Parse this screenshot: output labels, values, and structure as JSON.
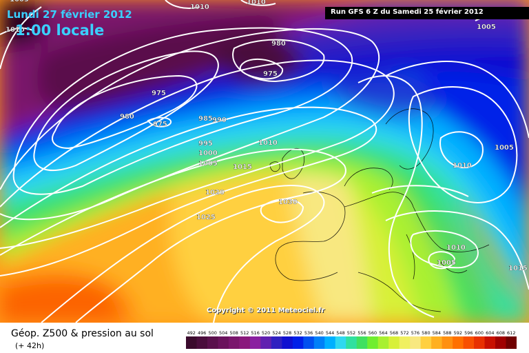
{
  "header": {
    "date": "Lundi 27 février 2012",
    "time": "1:00 locale",
    "run": "Run GFS 6 Z du Samedi 25 février 2012"
  },
  "copyright": "Copyright © 2011 Meteociel.fr",
  "footer": {
    "field": "Géop. Z500 & pression au sol",
    "forecast": "(+ 42h)"
  },
  "scale": {
    "labels": [
      "492",
      "496",
      "500",
      "504",
      "508",
      "512",
      "516",
      "520",
      "524",
      "528",
      "532",
      "536",
      "540",
      "544",
      "548",
      "552",
      "556",
      "560",
      "564",
      "568",
      "572",
      "576",
      "580",
      "584",
      "588",
      "592",
      "596",
      "600",
      "604",
      "608",
      "612"
    ],
    "colors": [
      "#3a0a2c",
      "#4a0d3c",
      "#5a104c",
      "#6a135c",
      "#7a166c",
      "#8a197c",
      "#8a20a0",
      "#6020b0",
      "#3020c0",
      "#1010d0",
      "#0020e8",
      "#0050f0",
      "#0080f8",
      "#00b0ff",
      "#30d8f0",
      "#30e0a0",
      "#40e060",
      "#70ee30",
      "#a8f030",
      "#d8f038",
      "#f0f060",
      "#f8e880",
      "#ffd040",
      "#ffb020",
      "#ff9010",
      "#ff7000",
      "#f85000",
      "#e83000",
      "#c81000",
      "#a00000",
      "#700000"
    ]
  },
  "isobars": [
    {
      "text": "1010",
      "x": 1.0
    },
    {
      "text": "1010",
      "x": 1.0
    },
    {
      "text": "1010",
      "x": 1.0
    },
    {
      "text": "1005",
      "x": 1.0
    },
    {
      "text": "980",
      "x": 1.0
    },
    {
      "text": "975",
      "x": 1.0
    },
    {
      "text": "975",
      "x": 1.0
    },
    {
      "text": "980",
      "x": 1.0
    },
    {
      "text": "975",
      "x": 1.0
    },
    {
      "text": "985",
      "x": 1.0
    },
    {
      "text": "990",
      "x": 1.0
    },
    {
      "text": "995",
      "x": 1.0
    },
    {
      "text": "1000",
      "x": 1.0
    },
    {
      "text": "1005",
      "x": 1.0
    },
    {
      "text": "1010",
      "x": 1.0
    },
    {
      "text": "1015",
      "x": 1.0
    },
    {
      "text": "1020",
      "x": 1.0
    },
    {
      "text": "1025",
      "x": 1.0
    },
    {
      "text": "1030",
      "x": 1.0
    },
    {
      "text": "1005",
      "x": 1.0
    },
    {
      "text": "1010",
      "x": 1.0
    },
    {
      "text": "1010",
      "x": 1.0
    },
    {
      "text": "1005",
      "x": 1.0
    },
    {
      "text": "1015",
      "x": 1.0
    },
    {
      "text": "1005",
      "x": 1.0
    }
  ],
  "colors": {
    "title": "#3ad0ff"
  }
}
